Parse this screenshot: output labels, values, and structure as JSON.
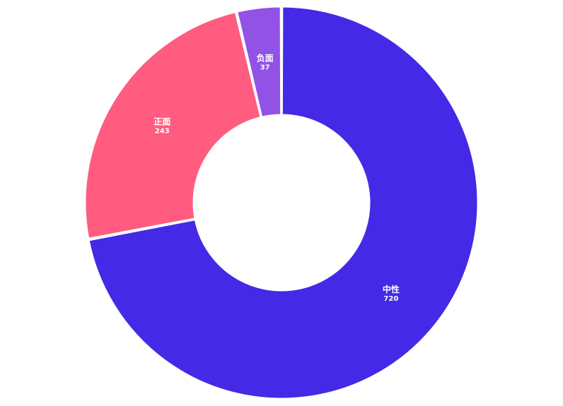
{
  "chart_data": {
    "type": "pie",
    "variant": "donut",
    "categories": [
      "中性",
      "正面",
      "负面"
    ],
    "values": [
      720,
      243,
      37
    ],
    "colors": [
      "#4429e6",
      "#ff5c7f",
      "#9252e6"
    ],
    "start_angle_deg": 0,
    "direction": "clockwise",
    "legend": "none",
    "labels_inside": true
  }
}
